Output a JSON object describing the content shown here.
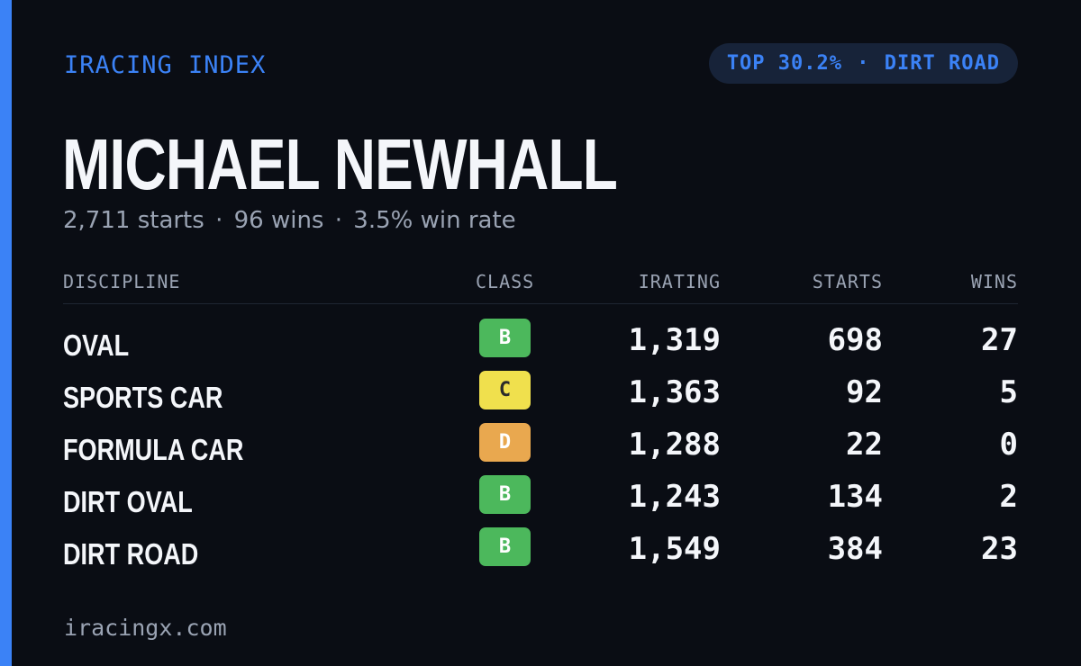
{
  "brand": "IRACING INDEX",
  "rank_badge": {
    "percentile": "TOP 30.2%",
    "separator": "·",
    "discipline": "DIRT ROAD"
  },
  "driver": {
    "name": "MICHAEL NEWHALL"
  },
  "summary": {
    "starts": "2,711 starts",
    "wins": "96 wins",
    "win_rate": "3.5% win rate",
    "separator": "·"
  },
  "table": {
    "headers": {
      "discipline": "DISCIPLINE",
      "class": "CLASS",
      "irating": "IRATING",
      "starts": "STARTS",
      "wins": "WINS"
    },
    "rows": [
      {
        "discipline": "OVAL",
        "class": "B",
        "irating": "1,319",
        "starts": "698",
        "wins": "27"
      },
      {
        "discipline": "SPORTS CAR",
        "class": "C",
        "irating": "1,363",
        "starts": "92",
        "wins": "5"
      },
      {
        "discipline": "FORMULA CAR",
        "class": "D",
        "irating": "1,288",
        "starts": "22",
        "wins": "0"
      },
      {
        "discipline": "DIRT OVAL",
        "class": "B",
        "irating": "1,243",
        "starts": "134",
        "wins": "2"
      },
      {
        "discipline": "DIRT ROAD",
        "class": "B",
        "irating": "1,549",
        "starts": "384",
        "wins": "23"
      }
    ]
  },
  "footer": {
    "site": "iracingx.com"
  },
  "colors": {
    "background": "#0a0d14",
    "accent": "#3b82f6",
    "class_B": "#4cb85c",
    "class_C": "#f0e04d",
    "class_D": "#e9a84f"
  }
}
